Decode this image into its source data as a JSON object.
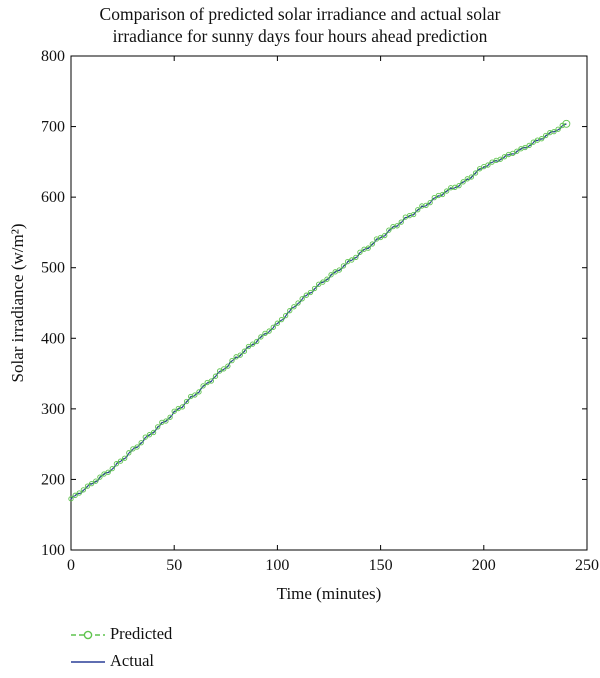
{
  "chart_data": {
    "type": "line",
    "title_lines": [
      "Comparison of predicted solar irradiance and actual solar",
      "irradiance for sunny days four hours ahead prediction"
    ],
    "xlabel": "Time (minutes)",
    "ylabel": "Solar irradiance (w/m²)",
    "xlim": [
      0,
      250
    ],
    "ylim": [
      100,
      800
    ],
    "xticks": [
      0,
      50,
      100,
      150,
      200,
      250
    ],
    "yticks": [
      100,
      200,
      300,
      400,
      500,
      600,
      700,
      800
    ],
    "grid": false,
    "legend_position": "bottom-left",
    "anchors_x": [
      0,
      20,
      40,
      60,
      80,
      100,
      110,
      120,
      140,
      160,
      180,
      190,
      200,
      220,
      240
    ],
    "anchors_y": [
      172,
      215,
      268,
      320,
      372,
      420,
      450,
      475,
      520,
      565,
      605,
      620,
      643,
      670,
      703
    ],
    "x_range": [
      0,
      240
    ],
    "series": [
      {
        "name": "Predicted",
        "color": "#5fc44e",
        "marker": "circle-open",
        "line_style": "dashed"
      },
      {
        "name": "Actual",
        "color": "#2a3f97",
        "marker": "none",
        "line_style": "solid"
      }
    ]
  }
}
